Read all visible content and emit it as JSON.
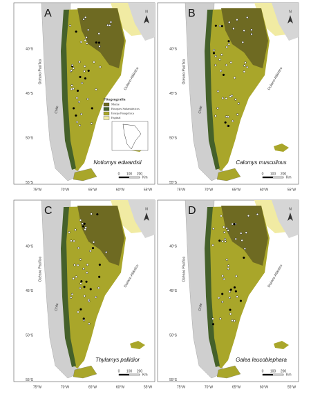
{
  "panels": [
    {
      "letter": "A",
      "species": "Notiomys edwardsii"
    },
    {
      "letter": "B",
      "species": "Calomys musculinus"
    },
    {
      "letter": "C",
      "species": "Thylamys pallidior"
    },
    {
      "letter": "D",
      "species": "Galea leucoblephara"
    }
  ],
  "latitudes": [
    "40°S",
    "45°S",
    "50°S",
    "55°S"
  ],
  "longitudes": [
    "75°W",
    "70°W",
    "65°W",
    "60°W",
    "55°W"
  ],
  "labels": {
    "pacific": "Océano Pacífico",
    "atlantic": "Océano Atlántico",
    "chile": "Chile",
    "north": "N"
  },
  "legend": {
    "title": "Fitogeografía",
    "items": [
      {
        "name": "Monte",
        "color": "#6e6a22"
      },
      {
        "name": "Bosques Subantárticos",
        "color": "#45612a"
      },
      {
        "name": "Estepa Patagónica",
        "color": "#a9a62a"
      },
      {
        "name": "Espinal",
        "color": "#f1eba3"
      }
    ]
  },
  "scale": {
    "ticks": [
      "0",
      "100",
      "200"
    ],
    "unit": "Km"
  }
}
